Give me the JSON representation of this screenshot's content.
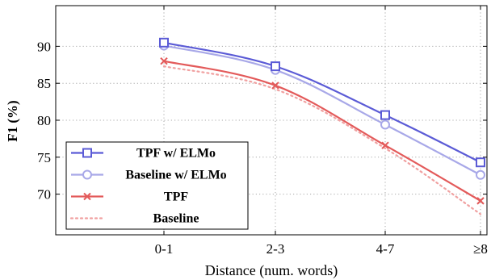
{
  "chart_data": {
    "type": "line",
    "categories": [
      "0-1",
      "2-3",
      "4-7",
      "≥8"
    ],
    "xlabel": "Distance (num. words)",
    "ylabel": "F1 (%)",
    "ylim": [
      64.5,
      95.5
    ],
    "yticks": [
      70,
      75,
      80,
      85,
      90
    ],
    "grid": true,
    "legend": "bottom-left",
    "series": [
      {
        "name": "TPF w/ ELMo",
        "values": [
          90.5,
          87.3,
          80.7,
          74.3
        ],
        "color": "#5b5bd6",
        "style": "solid",
        "marker": "square"
      },
      {
        "name": "Baseline w/ ELMo",
        "values": [
          90.1,
          86.8,
          79.4,
          72.6
        ],
        "color": "#a8a8e8",
        "style": "solid",
        "marker": "circle"
      },
      {
        "name": "TPF",
        "values": [
          88.0,
          84.7,
          76.6,
          69.1
        ],
        "color": "#e35a5a",
        "style": "solid",
        "marker": "x"
      },
      {
        "name": "Baseline",
        "values": [
          87.3,
          84.2,
          76.2,
          67.3
        ],
        "color": "#f0a0a0",
        "style": "dotted",
        "marker": "none"
      }
    ]
  }
}
